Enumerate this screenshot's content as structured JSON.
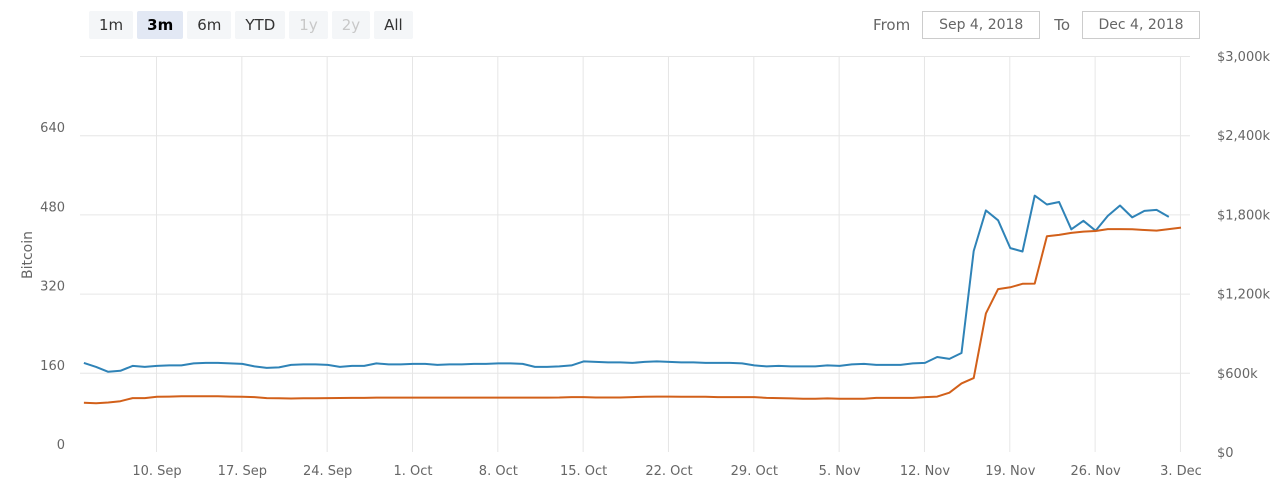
{
  "range_selector": {
    "buttons": [
      {
        "label": "1m",
        "state": "normal"
      },
      {
        "label": "3m",
        "state": "active"
      },
      {
        "label": "6m",
        "state": "normal"
      },
      {
        "label": "YTD",
        "state": "normal"
      },
      {
        "label": "1y",
        "state": "disabled"
      },
      {
        "label": "2y",
        "state": "disabled"
      },
      {
        "label": "All",
        "state": "normal"
      }
    ]
  },
  "date_range": {
    "from_label": "From",
    "from_value": "Sep 4, 2018",
    "to_label": "To",
    "to_value": "Dec 4, 2018"
  },
  "chart_data": {
    "type": "line",
    "title": "",
    "x_start": "2018-09-04",
    "x_ticks": [
      "10. Sep",
      "17. Sep",
      "24. Sep",
      "1. Oct",
      "8. Oct",
      "15. Oct",
      "22. Oct",
      "29. Oct",
      "5. Nov",
      "12. Nov",
      "19. Nov",
      "26. Nov",
      "3. Dec"
    ],
    "y_left": {
      "label": "Bitcoin",
      "ticks": [
        "0",
        "160",
        "320",
        "480",
        "640"
      ],
      "range": [
        0,
        800
      ]
    },
    "y_right": {
      "ticks": [
        "$0",
        "$600k",
        "$1,200k",
        "$1,800k",
        "$2,400k",
        "$3,000k"
      ],
      "range": [
        0,
        3000
      ]
    },
    "grid": true,
    "legend": "none",
    "series": [
      {
        "axis": "left",
        "color": "#2f83b7",
        "values": [
          180,
          172,
          162,
          164,
          174,
          172,
          174,
          175,
          175,
          179,
          180,
          180,
          179,
          178,
          173,
          170,
          171,
          176,
          177,
          177,
          176,
          172,
          174,
          174,
          179,
          177,
          177,
          178,
          178,
          176,
          177,
          177,
          178,
          178,
          179,
          179,
          178,
          172,
          172,
          173,
          175,
          183,
          182,
          181,
          181,
          180,
          182,
          183,
          182,
          181,
          181,
          180,
          180,
          180,
          179,
          175,
          173,
          174,
          173,
          173,
          173,
          175,
          174,
          177,
          178,
          176,
          176,
          176,
          179,
          180,
          192,
          188,
          200,
          406,
          488,
          468,
          412,
          405,
          518,
          500,
          505,
          450,
          467,
          447,
          477,
          498,
          474,
          487,
          489,
          475
        ]
      },
      {
        "axis": "right",
        "color": "#d2601a",
        "values": [
          373,
          370,
          375,
          385,
          408,
          408,
          418,
          420,
          422,
          423,
          423,
          422,
          420,
          418,
          416,
          408,
          407,
          405,
          407,
          407,
          408,
          409,
          410,
          410,
          412,
          412,
          412,
          412,
          412,
          412,
          412,
          412,
          412,
          412,
          412,
          412,
          412,
          412,
          412,
          413,
          416,
          416,
          413,
          413,
          413,
          416,
          419,
          420,
          420,
          418,
          418,
          418,
          416,
          416,
          416,
          416,
          410,
          408,
          406,
          404,
          404,
          406,
          404,
          404,
          404,
          410,
          410,
          410,
          410,
          416,
          420,
          449,
          520,
          560,
          1050,
          1234,
          1248,
          1274,
          1276,
          1634,
          1645,
          1660,
          1670,
          1674,
          1689,
          1689,
          1688,
          1682,
          1677,
          1689,
          1700
        ]
      }
    ]
  }
}
